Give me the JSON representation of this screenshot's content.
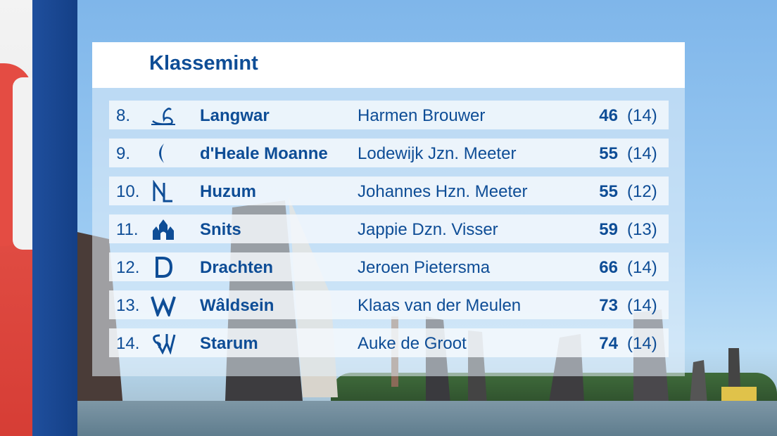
{
  "title": "Klassemint",
  "rows": [
    {
      "rank": "8.",
      "emblem": "swan-icon",
      "team": "Langwar",
      "skipper": "Harmen Brouwer",
      "points": "46",
      "races": "(14)"
    },
    {
      "rank": "9.",
      "emblem": "crescent-moon-icon",
      "team": "d'Heale Moanne",
      "skipper": "Lodewijk Jzn. Meeter",
      "points": "55",
      "races": "(14)"
    },
    {
      "rank": "10.",
      "emblem": "nl-monogram-icon",
      "team": "Huzum",
      "skipper": "Johannes Hzn. Meeter",
      "points": "55",
      "races": "(12)"
    },
    {
      "rank": "11.",
      "emblem": "waterpoort-icon",
      "team": "Snits",
      "skipper": "Jappie Dzn. Visser",
      "points": "59",
      "races": "(13)"
    },
    {
      "rank": "12.",
      "emblem": "letter-d-icon",
      "team": "Drachten",
      "skipper": "Jeroen Pietersma",
      "points": "66",
      "races": "(14)"
    },
    {
      "rank": "13.",
      "emblem": "letter-w-icon",
      "team": "Wâldsein",
      "skipper": "Klaas van der Meulen",
      "points": "73",
      "races": "(14)"
    },
    {
      "rank": "14.",
      "emblem": "sw-monogram-icon",
      "team": "Starum",
      "skipper": "Auke de Groot",
      "points": "74",
      "races": "(14)"
    }
  ],
  "colors": {
    "accent": "#0e4d96",
    "bar": "#1f4f9d",
    "flag_red": "#e44c43"
  }
}
